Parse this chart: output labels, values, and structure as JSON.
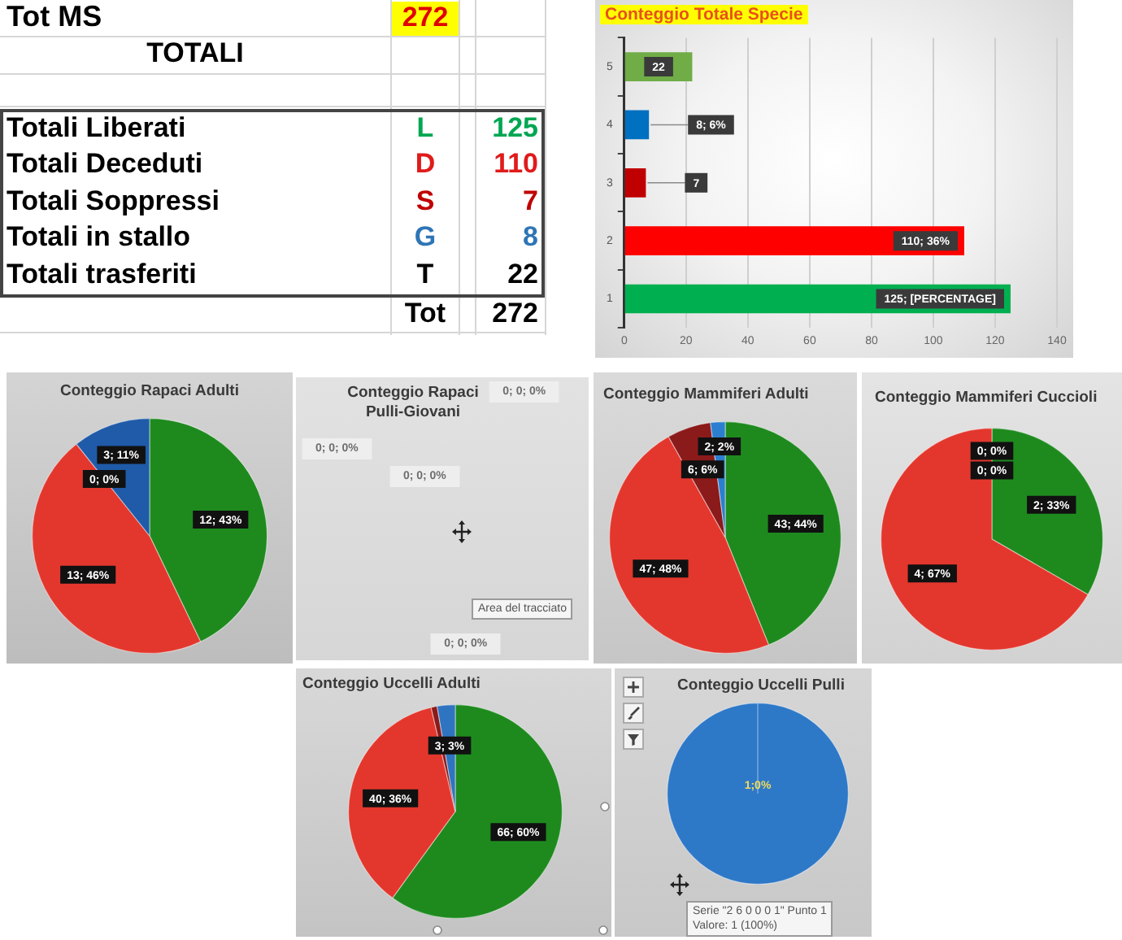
{
  "chart_data": [
    {
      "type": "other",
      "title": "TOTALI",
      "categories": [
        "Totali Liberati",
        "Totali Deceduti",
        "Totali Soppressi",
        "Totali in stallo",
        "Totali trasferiti"
      ],
      "values": [
        125,
        110,
        7,
        8,
        22
      ],
      "colors": [
        "#00a651",
        "#e01b1b",
        "#c00000",
        "#2e75b6",
        "#000000"
      ],
      "data_labels": true,
      "annotations": [
        "Tot MS",
        "272",
        "L",
        "D",
        "S",
        "G",
        "T",
        "Tot",
        "272"
      ]
    },
    {
      "type": "bar",
      "orientation": "horizontal",
      "title": "Conteggio Totale Specie",
      "categories": [
        "5",
        "4",
        "3",
        "2",
        "1"
      ],
      "values": [
        22,
        8,
        7,
        110,
        125
      ],
      "colors": [
        "#70ad47",
        "#0070c0",
        "#c00000",
        "#ff0000",
        "#00b050"
      ],
      "value_labels": [
        "22",
        "8; 6%",
        "7",
        "110; 36%",
        "125; [PERCENTAGE]"
      ],
      "xlim": [
        0,
        140
      ],
      "xticks": [
        0,
        20,
        40,
        60,
        80,
        100,
        120,
        140
      ],
      "grid": "x"
    },
    {
      "type": "pie",
      "title": "Conteggio Rapaci Adulti",
      "categories": [
        null,
        null,
        null,
        null
      ],
      "values": [
        12,
        13,
        0,
        3
      ],
      "colors": [
        "#1e8a1e",
        "#e3372d",
        "#8b1a1a",
        "#1f5ba8"
      ],
      "value_labels": [
        "12; 43%",
        "13; 46%",
        "0; 0%",
        "3; 11%"
      ]
    },
    {
      "type": "other",
      "title": "Conteggio Rapaci Pulli-Giovani",
      "annotations": [
        "0; 0; 0%",
        "0; 0; 0%",
        "0; 0; 0%",
        "0; 0; 0%",
        "Area del tracciato"
      ]
    },
    {
      "type": "pie",
      "title": "Conteggio Mammiferi Adulti",
      "categories": [
        null,
        null,
        null,
        null
      ],
      "values": [
        43,
        47,
        6,
        2
      ],
      "colors": [
        "#1e8a1e",
        "#e3372d",
        "#8b1a1a",
        "#2c7fd0"
      ],
      "value_labels": [
        "43; 44%",
        "47; 48%",
        "6; 6%",
        "2; 2%"
      ]
    },
    {
      "type": "pie",
      "title": "Conteggio Mammiferi Cuccioli",
      "categories": [
        null,
        null,
        null,
        null
      ],
      "values": [
        2,
        4,
        0,
        0
      ],
      "colors": [
        "#1e8a1e",
        "#e3372d",
        "#8b1a1a",
        "#2c7fd0"
      ],
      "value_labels": [
        "2; 33%",
        "4; 67%",
        "0; 0%",
        "0; 0%"
      ]
    },
    {
      "type": "pie",
      "title": "Conteggio Uccelli Adulti",
      "categories": [
        null,
        null,
        null,
        null
      ],
      "values": [
        66,
        40,
        1,
        3
      ],
      "colors": [
        "#1e8a1e",
        "#e3372d",
        "#8b1a1a",
        "#2f74c0"
      ],
      "value_labels": [
        "66; 60%",
        "40; 36%",
        null,
        "3; 3%"
      ]
    },
    {
      "type": "pie",
      "title": "Conteggio Uccelli Pulli",
      "categories": [
        null
      ],
      "values": [
        1
      ],
      "colors": [
        "#2e78c8"
      ],
      "value_labels": [
        "1;0%"
      ],
      "annotations": [
        "Serie \"2 6 0 0 0 1\" Punto 1",
        "Valore: 1 (100%)"
      ]
    }
  ]
}
